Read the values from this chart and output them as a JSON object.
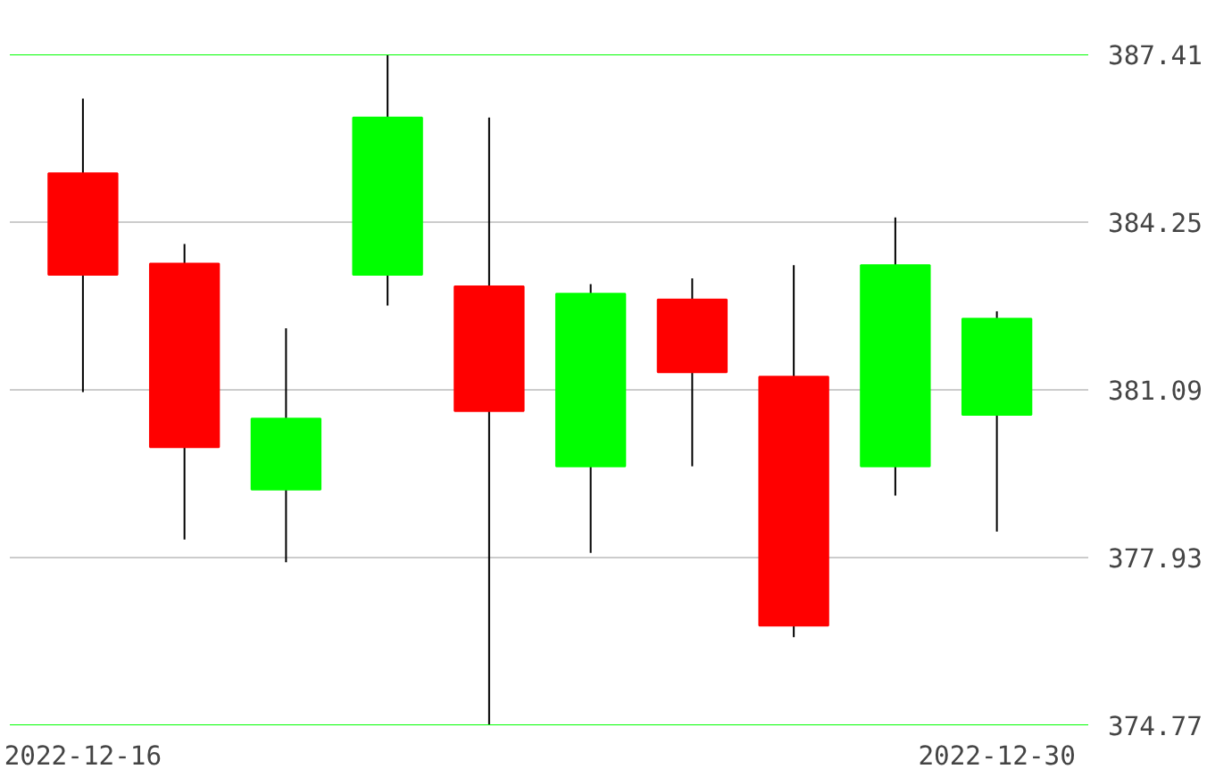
{
  "chart_data": {
    "type": "candlestick",
    "categories": [
      "2022-12-16",
      null,
      null,
      null,
      null,
      null,
      null,
      null,
      null,
      "2022-12-30"
    ],
    "ohlc": [
      [
        385.17,
        386.58,
        381.05,
        383.26
      ],
      [
        383.47,
        383.84,
        378.27,
        380.01
      ],
      [
        379.21,
        382.25,
        377.84,
        380.55
      ],
      [
        383.26,
        387.41,
        382.68,
        386.22
      ],
      [
        383.04,
        386.22,
        374.77,
        380.69
      ],
      [
        379.65,
        383.08,
        378.02,
        382.9
      ],
      [
        382.79,
        383.19,
        379.65,
        381.42
      ],
      [
        381.34,
        383.44,
        376.43,
        376.65
      ],
      [
        379.65,
        384.34,
        379.1,
        383.44
      ],
      [
        380.62,
        382.57,
        378.42,
        382.43
      ]
    ],
    "colors": [
      "#ff0000",
      "#ff0000",
      "#00ff00",
      "#00ff00",
      "#ff0000",
      "#00ff00",
      "#ff0000",
      "#ff0000",
      "#00ff00",
      "#00ff00"
    ],
    "ylim": [
      374.77,
      387.41
    ],
    "yticks": [
      374.77,
      377.93,
      381.09,
      384.25,
      387.41
    ],
    "grid": "y"
  }
}
